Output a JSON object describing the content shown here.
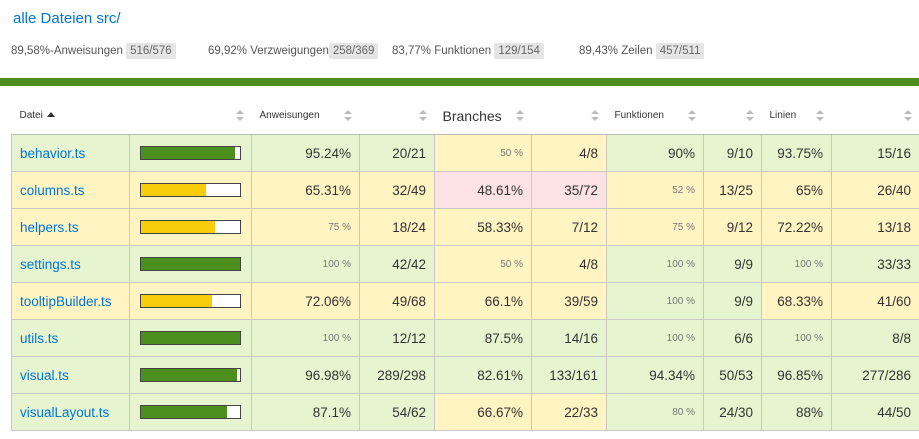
{
  "breadcrumb": "alle Dateien src/",
  "summary": [
    {
      "percent": "89,58%",
      "label": "-Anweisungen",
      "fraction": "516/576"
    },
    {
      "percent": "69,92%",
      "label": "Verzweigungen",
      "fraction": "258/369"
    },
    {
      "percent": "83,77%",
      "label": "Funktionen",
      "fraction": "129/154"
    },
    {
      "percent": "89,43%",
      "label": "Zeilen",
      "fraction": "457/511"
    }
  ],
  "columns": {
    "file": "Datei",
    "statements": "Anweisungen",
    "branches": "Branches",
    "functions": "Funktionen",
    "lines": "Linien"
  },
  "colors": {
    "high": "#e6f5d0",
    "medium": "#fff4c2",
    "low": "#fce1e5",
    "bar_green": "#4d8f1f",
    "bar_yellow": "#f9cd0b",
    "link": "#0074D9"
  },
  "rows": [
    {
      "file": "behavior.ts",
      "bar_fraction": 0.9524,
      "bar_color": "green",
      "statements": {
        "pct": "95.24%",
        "frac": "20/21",
        "level": "high",
        "small": false
      },
      "branches": {
        "pct": "50 %",
        "frac": "4/8",
        "level": "medium",
        "small": true
      },
      "functions": {
        "pct": "90%",
        "frac": "9/10",
        "level": "high",
        "small": false
      },
      "lines": {
        "pct": "93.75%",
        "frac": "15/16",
        "level": "high",
        "small": false
      }
    },
    {
      "file": "columns.ts",
      "bar_fraction": 0.6531,
      "bar_color": "yellow",
      "statements": {
        "pct": "65.31%",
        "frac": "32/49",
        "level": "medium",
        "small": false
      },
      "branches": {
        "pct": "48.61%",
        "frac": "35/72",
        "level": "low",
        "small": false
      },
      "functions": {
        "pct": "52 %",
        "frac": "13/25",
        "level": "medium",
        "small": true
      },
      "lines": {
        "pct": "65%",
        "frac": "26/40",
        "level": "medium",
        "small": false
      }
    },
    {
      "file": "helpers.ts",
      "bar_fraction": 0.75,
      "bar_color": "yellow",
      "statements": {
        "pct": "75 %",
        "frac": "18/24",
        "level": "medium",
        "small": true
      },
      "branches": {
        "pct": "58.33%",
        "frac": "7/12",
        "level": "medium",
        "small": false
      },
      "functions": {
        "pct": "75 %",
        "frac": "9/12",
        "level": "medium",
        "small": true
      },
      "lines": {
        "pct": "72.22%",
        "frac": "13/18",
        "level": "medium",
        "small": false
      }
    },
    {
      "file": "settings.ts",
      "bar_fraction": 1.0,
      "bar_color": "green",
      "statements": {
        "pct": "100 %",
        "frac": "42/42",
        "level": "high",
        "small": true
      },
      "branches": {
        "pct": "50 %",
        "frac": "4/8",
        "level": "medium",
        "small": true
      },
      "functions": {
        "pct": "100 %",
        "frac": "9/9",
        "level": "high",
        "small": true
      },
      "lines": {
        "pct": "100 %",
        "frac": "33/33",
        "level": "high",
        "small": true
      }
    },
    {
      "file": "tooltipBuilder.ts",
      "bar_fraction": 0.7206,
      "bar_color": "yellow",
      "statements": {
        "pct": "72.06%",
        "frac": "49/68",
        "level": "medium",
        "small": false
      },
      "branches": {
        "pct": "66.1%",
        "frac": "39/59",
        "level": "medium",
        "small": false
      },
      "functions": {
        "pct": "100 %",
        "frac": "9/9",
        "level": "high",
        "small": true
      },
      "lines": {
        "pct": "68.33%",
        "frac": "41/60",
        "level": "medium",
        "small": false
      }
    },
    {
      "file": "utils.ts",
      "bar_fraction": 1.0,
      "bar_color": "green",
      "statements": {
        "pct": "100 %",
        "frac": "12/12",
        "level": "high",
        "small": true
      },
      "branches": {
        "pct": "87.5%",
        "frac": "14/16",
        "level": "high",
        "small": false
      },
      "functions": {
        "pct": "100 %",
        "frac": "6/6",
        "level": "high",
        "small": true
      },
      "lines": {
        "pct": "100 %",
        "frac": "8/8",
        "level": "high",
        "small": true
      }
    },
    {
      "file": "visual.ts",
      "bar_fraction": 0.9698,
      "bar_color": "green",
      "statements": {
        "pct": "96.98%",
        "frac": "289/298",
        "level": "high",
        "small": false
      },
      "branches": {
        "pct": "82.61%",
        "frac": "133/161",
        "level": "high",
        "small": false
      },
      "functions": {
        "pct": "94.34%",
        "frac": "50/53",
        "level": "high",
        "small": false
      },
      "lines": {
        "pct": "96.85%",
        "frac": "277/286",
        "level": "high",
        "small": false
      }
    },
    {
      "file": "visualLayout.ts",
      "bar_fraction": 0.871,
      "bar_color": "green",
      "statements": {
        "pct": "87.1%",
        "frac": "54/62",
        "level": "high",
        "small": false
      },
      "branches": {
        "pct": "66.67%",
        "frac": "22/33",
        "level": "medium",
        "small": false
      },
      "functions": {
        "pct": "80 %",
        "frac": "24/30",
        "level": "high",
        "small": true
      },
      "lines": {
        "pct": "88%",
        "frac": "44/50",
        "level": "high",
        "small": false
      }
    }
  ]
}
